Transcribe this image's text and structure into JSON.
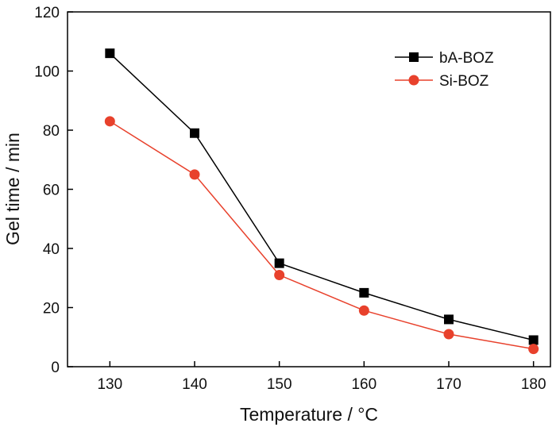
{
  "chart_data": {
    "type": "line",
    "title": "",
    "xlabel": "Temperature / °C",
    "ylabel": "Gel time / min",
    "x": [
      130,
      140,
      150,
      160,
      170,
      180
    ],
    "xlim": [
      125,
      182
    ],
    "ylim": [
      0,
      120
    ],
    "xticks": [
      130,
      140,
      150,
      160,
      170,
      180
    ],
    "yticks": [
      0,
      20,
      40,
      60,
      80,
      100,
      120
    ],
    "grid": false,
    "legend_position": "top-right",
    "series": [
      {
        "name": "bA-BOZ",
        "values": [
          106,
          79,
          35,
          25,
          16,
          9
        ],
        "color": "#000000",
        "marker": "square"
      },
      {
        "name": "Si-BOZ",
        "values": [
          83,
          65,
          31,
          19,
          11,
          6
        ],
        "color": "#e8412c",
        "marker": "circle"
      }
    ]
  }
}
